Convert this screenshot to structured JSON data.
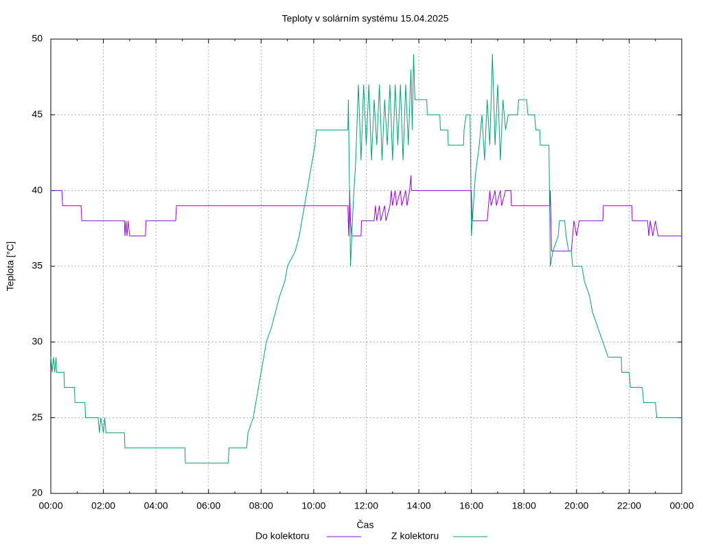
{
  "chart_data": {
    "type": "line",
    "title": "Teploty v solárním systému 15.04.2025",
    "x_label": "Čas",
    "y_label": "Teplota [°C]",
    "xlim": [
      0,
      24
    ],
    "ylim": [
      20,
      50
    ],
    "yticks": [
      20,
      25,
      30,
      35,
      40,
      45,
      50
    ],
    "xticks": [
      {
        "value": 0,
        "label": "00:00"
      },
      {
        "value": 2,
        "label": "02:00"
      },
      {
        "value": 4,
        "label": "04:00"
      },
      {
        "value": 6,
        "label": "06:00"
      },
      {
        "value": 8,
        "label": "08:00"
      },
      {
        "value": 10,
        "label": "10:00"
      },
      {
        "value": 12,
        "label": "12:00"
      },
      {
        "value": 14,
        "label": "14:00"
      },
      {
        "value": 16,
        "label": "16:00"
      },
      {
        "value": 18,
        "label": "18:00"
      },
      {
        "value": 20,
        "label": "20:00"
      },
      {
        "value": 22,
        "label": "22:00"
      },
      {
        "value": 24,
        "label": "00:00"
      }
    ],
    "grid": true,
    "legend": "bottom",
    "series": [
      {
        "name": "Do kolektoru",
        "color": "#9400d3",
        "x": [
          0,
          0.42,
          0.45,
          1.15,
          1.18,
          2.8,
          2.82,
          2.86,
          2.9,
          2.94,
          3.0,
          3.6,
          3.62,
          4.75,
          4.78,
          11.3,
          11.33,
          11.37,
          11.4,
          11.45,
          11.8,
          11.82,
          12.3,
          12.35,
          12.4,
          12.5,
          12.55,
          12.7,
          12.75,
          12.9,
          12.95,
          13.0,
          13.1,
          13.15,
          13.3,
          13.35,
          13.5,
          13.55,
          13.65,
          13.7,
          13.72,
          16.0,
          16.03,
          16.6,
          16.65,
          16.7,
          16.75,
          16.9,
          16.95,
          17.1,
          17.15,
          17.3,
          17.5,
          17.52,
          18.98,
          19.0,
          19.05,
          19.8,
          19.85,
          19.9,
          20.0,
          20.1,
          20.2,
          21.0,
          21.02,
          22.1,
          22.12,
          22.7,
          22.75,
          22.8,
          22.9,
          23.0,
          23.1,
          24
        ],
        "values": [
          40,
          40,
          39,
          39,
          38,
          38,
          37,
          38,
          37,
          38,
          37,
          37,
          38,
          38,
          39,
          39,
          37,
          40,
          38,
          37,
          37,
          38,
          38,
          39,
          38,
          39,
          38,
          39,
          38,
          39,
          40,
          39,
          40,
          39,
          40,
          39,
          40,
          39,
          40,
          41,
          40,
          40,
          38,
          38,
          39,
          40,
          39,
          40,
          39,
          40,
          39,
          40,
          40,
          39,
          39,
          40,
          36,
          36,
          37,
          38,
          37,
          38,
          38,
          38,
          39,
          39,
          38,
          38,
          37,
          38,
          37,
          38,
          37,
          37
        ]
      },
      {
        "name": "Z kolektoru",
        "color": "#009e73",
        "x": [
          0,
          0.05,
          0.1,
          0.15,
          0.2,
          0.22,
          0.5,
          0.52,
          0.9,
          0.92,
          1.3,
          1.32,
          1.8,
          1.85,
          1.9,
          2.0,
          2.05,
          2.1,
          2.8,
          2.82,
          5.1,
          5.12,
          6.75,
          6.78,
          7.45,
          7.5,
          7.7,
          7.9,
          8.0,
          8.1,
          8.2,
          8.4,
          8.55,
          8.7,
          8.9,
          9.0,
          9.3,
          9.45,
          9.55,
          9.65,
          9.75,
          9.85,
          9.95,
          10.05,
          10.1,
          11.3,
          11.32,
          11.4,
          11.5,
          11.6,
          11.7,
          11.8,
          11.9,
          12.0,
          12.1,
          12.2,
          12.3,
          12.4,
          12.5,
          12.6,
          12.7,
          12.8,
          12.9,
          13.0,
          13.1,
          13.2,
          13.3,
          13.4,
          13.5,
          13.6,
          13.7,
          13.75,
          13.8,
          13.85,
          14.3,
          14.32,
          14.8,
          14.82,
          15.1,
          15.12,
          15.7,
          15.72,
          15.8,
          15.95,
          16.0,
          16.15,
          16.3,
          16.4,
          16.5,
          16.6,
          16.7,
          16.8,
          16.9,
          17.0,
          17.1,
          17.2,
          17.3,
          17.4,
          17.75,
          17.8,
          18.1,
          18.15,
          18.4,
          18.45,
          18.6,
          18.62,
          18.95,
          19.0,
          19.1,
          19.3,
          19.35,
          19.55,
          19.6,
          19.7,
          19.8,
          19.85,
          20.2,
          20.3,
          20.5,
          20.6,
          20.8,
          21.0,
          21.2,
          21.7,
          21.72,
          22.0,
          22.05,
          22.5,
          22.55,
          23.0,
          23.05,
          23.6,
          24
        ],
        "values": [
          29,
          28,
          29,
          28,
          29,
          28,
          28,
          27,
          27,
          26,
          26,
          25,
          25,
          24,
          25,
          24,
          25,
          24,
          24,
          23,
          23,
          22,
          22,
          23,
          23,
          24,
          25,
          27,
          28,
          29,
          30,
          31,
          32,
          33,
          34,
          35,
          36,
          37,
          38,
          39,
          40,
          41,
          42,
          43,
          44,
          44,
          46,
          35,
          39,
          42,
          47,
          42,
          47,
          43,
          47,
          42,
          46,
          43,
          47,
          42,
          46,
          43,
          47,
          42,
          47,
          43,
          47,
          42,
          47,
          43,
          48,
          44,
          49,
          46,
          46,
          45,
          45,
          44,
          44,
          43,
          43,
          44,
          45,
          45,
          37,
          41,
          43,
          45,
          42,
          46,
          43,
          49,
          43,
          47,
          42,
          46,
          44,
          45,
          45,
          46,
          46,
          45,
          45,
          44,
          44,
          43,
          43,
          35,
          36,
          37,
          38,
          38,
          37,
          36,
          36,
          35,
          35,
          34,
          33,
          32,
          31,
          30,
          29,
          29,
          28,
          28,
          27,
          27,
          26,
          26,
          25,
          25,
          25
        ]
      }
    ]
  }
}
